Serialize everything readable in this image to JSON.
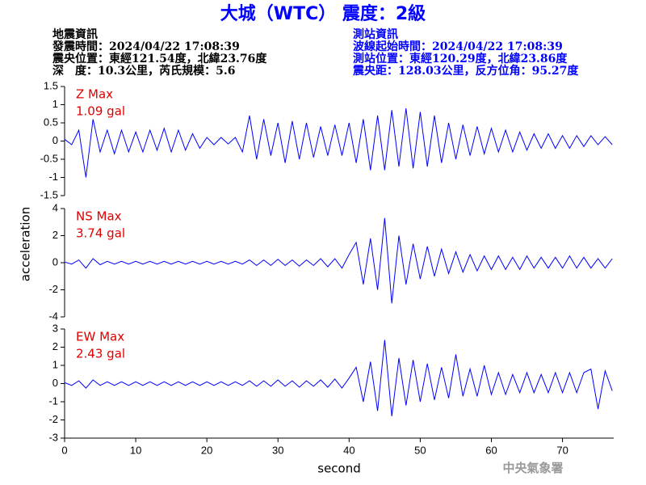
{
  "header": {
    "title": "大城（WTC） 震度：2級",
    "left": [
      "地震資訊",
      "發震時間：2024/04/22 17:08:39",
      "震央位置：東經121.54度，北緯23.76度",
      "深　度：10.3公里，芮氏規模：5.6"
    ],
    "right": [
      "測站資訊",
      "波線起始時間：2024/04/22 17:08:39",
      "測站位置：東經120.29度，北緯23.86度",
      "震央距：128.03公里，反方位角：95.27度"
    ],
    "left_color": "#000000",
    "right_color": "#0000ff",
    "title_color": "#0000ff"
  },
  "watermark": "中央氣象署",
  "chart_data": [
    {
      "type": "line",
      "annotations": [
        "Z Max",
        "1.09 gal"
      ],
      "annotation_color": "#e00000",
      "color": "#0000ff",
      "x": [
        0,
        1,
        2,
        3,
        4,
        5,
        6,
        7,
        8,
        9,
        10,
        11,
        12,
        13,
        14,
        15,
        16,
        17,
        18,
        19,
        20,
        21,
        22,
        23,
        24,
        25,
        26,
        27,
        28,
        29,
        30,
        31,
        32,
        33,
        34,
        35,
        36,
        37,
        38,
        39,
        40,
        41,
        42,
        43,
        44,
        45,
        46,
        47,
        48,
        49,
        50,
        51,
        52,
        53,
        54,
        55,
        56,
        57,
        58,
        59,
        60,
        61,
        62,
        63,
        64,
        65,
        66,
        67,
        68,
        69,
        70,
        71,
        72,
        73,
        74,
        75,
        76,
        77
      ],
      "values": [
        0.05,
        -0.1,
        0.3,
        -1,
        0.6,
        -0.3,
        0.3,
        -0.35,
        0.3,
        -0.3,
        0.25,
        -0.3,
        0.3,
        -0.25,
        0.35,
        -0.3,
        0.3,
        -0.25,
        0.2,
        -0.2,
        0.1,
        -0.1,
        0.1,
        -0.08,
        0.1,
        -0.3,
        0.7,
        -0.5,
        0.6,
        -0.4,
        0.5,
        -0.6,
        0.55,
        -0.5,
        0.5,
        -0.45,
        0.4,
        -0.4,
        0.45,
        -0.4,
        0.5,
        -0.6,
        0.6,
        -0.8,
        0.7,
        -0.8,
        0.85,
        -0.7,
        0.9,
        -0.75,
        0.8,
        -0.7,
        0.7,
        -0.6,
        0.5,
        -0.5,
        0.45,
        -0.4,
        0.4,
        -0.35,
        0.35,
        -0.3,
        0.3,
        -0.3,
        0.25,
        -0.25,
        0.2,
        -0.2,
        0.2,
        -0.2,
        0.15,
        -0.2,
        0.15,
        -0.15,
        0.15,
        -0.1,
        0.12,
        -0.1
      ],
      "xlim": [
        0,
        77.2
      ],
      "ylim": [
        -1.5,
        1.5
      ],
      "yticks": [
        -1.5,
        -1,
        -0.5,
        0,
        0.5,
        1,
        1.5
      ]
    },
    {
      "type": "line",
      "annotations": [
        "NS Max",
        "3.74 gal"
      ],
      "annotation_color": "#e00000",
      "color": "#0000ff",
      "ylabel": "acceleration",
      "x": [
        0,
        1,
        2,
        3,
        4,
        5,
        6,
        7,
        8,
        9,
        10,
        11,
        12,
        13,
        14,
        15,
        16,
        17,
        18,
        19,
        20,
        21,
        22,
        23,
        24,
        25,
        26,
        27,
        28,
        29,
        30,
        31,
        32,
        33,
        34,
        35,
        36,
        37,
        38,
        39,
        40,
        41,
        42,
        43,
        44,
        45,
        46,
        47,
        48,
        49,
        50,
        51,
        52,
        53,
        54,
        55,
        56,
        57,
        58,
        59,
        60,
        61,
        62,
        63,
        64,
        65,
        66,
        67,
        68,
        69,
        70,
        71,
        72,
        73,
        74,
        75,
        76,
        77
      ],
      "values": [
        0.05,
        -0.1,
        0.2,
        -0.4,
        0.3,
        -0.15,
        0.1,
        -0.1,
        0.1,
        -0.1,
        0.1,
        -0.1,
        0.1,
        -0.1,
        0.1,
        -0.1,
        0.1,
        -0.1,
        0.1,
        -0.1,
        0.1,
        -0.1,
        0.1,
        -0.1,
        0.1,
        -0.1,
        0.2,
        -0.2,
        0.2,
        -0.2,
        0.25,
        -0.2,
        0.2,
        -0.25,
        0.2,
        -0.2,
        0.3,
        -0.3,
        0.3,
        -0.4,
        0.6,
        1.5,
        -1.6,
        1.8,
        -2,
        3.3,
        -3,
        2,
        -1.6,
        1.4,
        -1.2,
        1.2,
        -1,
        1,
        -0.8,
        0.8,
        -0.7,
        0.6,
        -0.6,
        0.5,
        -0.5,
        0.5,
        -0.5,
        0.4,
        -0.5,
        0.5,
        -0.4,
        0.4,
        -0.4,
        0.4,
        -0.4,
        0.5,
        -0.4,
        0.4,
        -0.4,
        0.3,
        -0.4,
        0.3
      ],
      "xlim": [
        0,
        77.2
      ],
      "ylim": [
        -4,
        4
      ],
      "yticks": [
        -4,
        -2,
        0,
        2,
        4
      ]
    },
    {
      "type": "line",
      "annotations": [
        "EW Max",
        "2.43 gal"
      ],
      "annotation_color": "#e00000",
      "color": "#0000ff",
      "xlabel": "second",
      "x": [
        0,
        1,
        2,
        3,
        4,
        5,
        6,
        7,
        8,
        9,
        10,
        11,
        12,
        13,
        14,
        15,
        16,
        17,
        18,
        19,
        20,
        21,
        22,
        23,
        24,
        25,
        26,
        27,
        28,
        29,
        30,
        31,
        32,
        33,
        34,
        35,
        36,
        37,
        38,
        39,
        40,
        41,
        42,
        43,
        44,
        45,
        46,
        47,
        48,
        49,
        50,
        51,
        52,
        53,
        54,
        55,
        56,
        57,
        58,
        59,
        60,
        61,
        62,
        63,
        64,
        65,
        66,
        67,
        68,
        69,
        70,
        71,
        72,
        73,
        74,
        75,
        76,
        77
      ],
      "values": [
        0.05,
        -0.1,
        0.15,
        -0.25,
        0.2,
        -0.1,
        0.1,
        -0.1,
        0.1,
        -0.1,
        0.1,
        -0.1,
        0.1,
        -0.1,
        0.1,
        -0.1,
        0.1,
        -0.1,
        0.1,
        -0.1,
        0.1,
        -0.1,
        0.1,
        -0.1,
        0.1,
        -0.1,
        0.15,
        -0.15,
        0.15,
        -0.15,
        0.2,
        -0.15,
        0.15,
        -0.2,
        0.15,
        -0.15,
        0.2,
        -0.2,
        0.25,
        -0.25,
        0.3,
        0.9,
        -1,
        1.2,
        -1.5,
        2.4,
        -1.8,
        1.4,
        -1.2,
        1.3,
        -1,
        1.1,
        -0.9,
        0.9,
        -0.8,
        1.6,
        -0.7,
        0.8,
        -0.7,
        1,
        -0.6,
        0.6,
        -0.6,
        0.5,
        -0.5,
        0.6,
        -0.5,
        0.5,
        -0.5,
        0.6,
        -0.5,
        0.6,
        -0.5,
        0.6,
        0.8,
        -1.4,
        0.7,
        -0.4
      ],
      "xlim": [
        0,
        77.2
      ],
      "ylim": [
        -3,
        3
      ],
      "yticks": [
        -3,
        -2,
        -1,
        0,
        1,
        2,
        3
      ],
      "xticks": [
        0,
        10,
        20,
        30,
        40,
        50,
        60,
        70
      ]
    }
  ]
}
